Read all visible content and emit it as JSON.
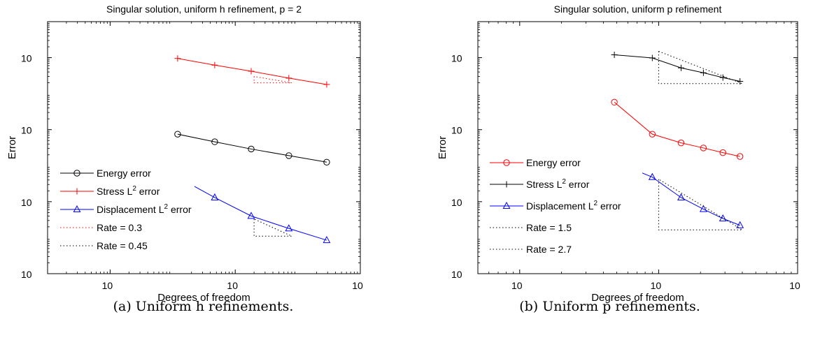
{
  "figure": {
    "captions": [
      "(a) Uniform h refinements.",
      "(b) Uniform p refinements."
    ]
  },
  "chart_data": [
    {
      "type": "line",
      "title": "Singular solution, uniform h refinement, p = 2",
      "xlabel": "Degrees of freedom",
      "ylabel": "Error",
      "xscale": "log",
      "yscale": "log",
      "xlim": [
        10,
        1000000
      ],
      "ylim": [
        1e-06,
        10
      ],
      "xticks": [
        {
          "value": 100,
          "base": "10",
          "exp": "2"
        },
        {
          "value": 10000,
          "base": "10",
          "exp": "4"
        },
        {
          "value": 1000000,
          "base": "10",
          "exp": "6"
        }
      ],
      "yticks": [
        {
          "value": 1,
          "base": "10",
          "exp": "0"
        },
        {
          "value": 0.01,
          "base": "10",
          "exp": "-2"
        },
        {
          "value": 0.0001,
          "base": "10",
          "exp": "-4"
        },
        {
          "value": 1e-06,
          "base": "10",
          "exp": "-6"
        }
      ],
      "legend_position": "lower-left",
      "series": [
        {
          "name": "Energy error",
          "color": "#000000",
          "marker": "circle",
          "line": "solid",
          "x": [
            1200,
            4700,
            18000,
            72000,
            290000
          ],
          "y": [
            0.0075,
            0.0046,
            0.0029,
            0.0019,
            0.00125
          ]
        },
        {
          "name": "Stress L² error",
          "color": "#ff0000",
          "marker": "plus",
          "line": "solid",
          "x": [
            1200,
            4700,
            18000,
            72000,
            290000
          ],
          "y": [
            0.95,
            0.62,
            0.42,
            0.27,
            0.18
          ]
        },
        {
          "name": "Displacement L² error",
          "color": "#0000ff",
          "marker": "triangle",
          "line": "solid",
          "x": [
            1200,
            4700,
            18000,
            72000,
            290000
          ],
          "y": [
            0.00048,
            0.00013,
            4e-05,
            1.8e-05,
            8.5e-06
          ]
        },
        {
          "name": "Rate = 0.3",
          "color": "#ff0000",
          "marker": "none",
          "line": "dotted",
          "x": [
            20000,
            20000,
            80000,
            20000
          ],
          "y": [
            0.3,
            0.2,
            0.2,
            0.3
          ]
        },
        {
          "name": "Rate = 0.45",
          "color": "#000000",
          "marker": "none",
          "line": "dotted",
          "x": [
            20000,
            20000,
            80000,
            20000
          ],
          "y": [
            3.3e-05,
            1.1e-05,
            1.1e-05,
            3.3e-05
          ]
        }
      ]
    },
    {
      "type": "line",
      "title": "Singular solution, uniform p refinement",
      "xlabel": "Degrees of freedom",
      "ylabel": "Error",
      "xscale": "log",
      "yscale": "log",
      "xlim": [
        50,
        10000
      ],
      "ylim": [
        1e-06,
        10
      ],
      "xticks": [
        {
          "value": 100,
          "base": "10",
          "exp": "2"
        },
        {
          "value": 1000,
          "base": "10",
          "exp": "3"
        },
        {
          "value": 10000,
          "base": "10",
          "exp": "4"
        }
      ],
      "yticks": [
        {
          "value": 1,
          "base": "10",
          "exp": "0"
        },
        {
          "value": 0.01,
          "base": "10",
          "exp": "-2"
        },
        {
          "value": 0.0001,
          "base": "10",
          "exp": "-4"
        },
        {
          "value": 1e-06,
          "base": "10",
          "exp": "-6"
        }
      ],
      "legend_position": "lower-left",
      "series": [
        {
          "name": "Energy error",
          "color": "#ff0000",
          "marker": "circle",
          "line": "solid",
          "x": [
            480,
            900,
            1450,
            2100,
            2900,
            3850
          ],
          "y": [
            0.058,
            0.0075,
            0.0043,
            0.0031,
            0.0023,
            0.0018
          ]
        },
        {
          "name": "Stress L² error",
          "color": "#000000",
          "marker": "plus",
          "line": "solid",
          "x": [
            480,
            900,
            1450,
            2100,
            2900,
            3850
          ],
          "y": [
            1.2,
            0.98,
            0.52,
            0.38,
            0.28,
            0.22
          ]
        },
        {
          "name": "Displacement L² error",
          "color": "#0000ff",
          "marker": "triangle",
          "line": "solid",
          "x": [
            480,
            900,
            1450,
            2100,
            2900,
            3850
          ],
          "y": [
            0.0013,
            0.00048,
            0.00013,
            6.2e-05,
            3.4e-05,
            2.2e-05
          ]
        },
        {
          "name": "Rate = 1.5",
          "color": "#000000",
          "marker": "none",
          "line": "dotted",
          "x": [
            1000,
            1000,
            4000,
            1000
          ],
          "y": [
            1.5,
            0.19,
            0.19,
            1.5
          ]
        },
        {
          "name": "Rate = 2.7",
          "color": "#000000",
          "marker": "none",
          "line": "dotted",
          "x": [
            1000,
            1000,
            4000,
            1000
          ],
          "y": [
            0.00042,
            1.65e-05,
            1.65e-05,
            0.00042
          ]
        }
      ]
    }
  ]
}
